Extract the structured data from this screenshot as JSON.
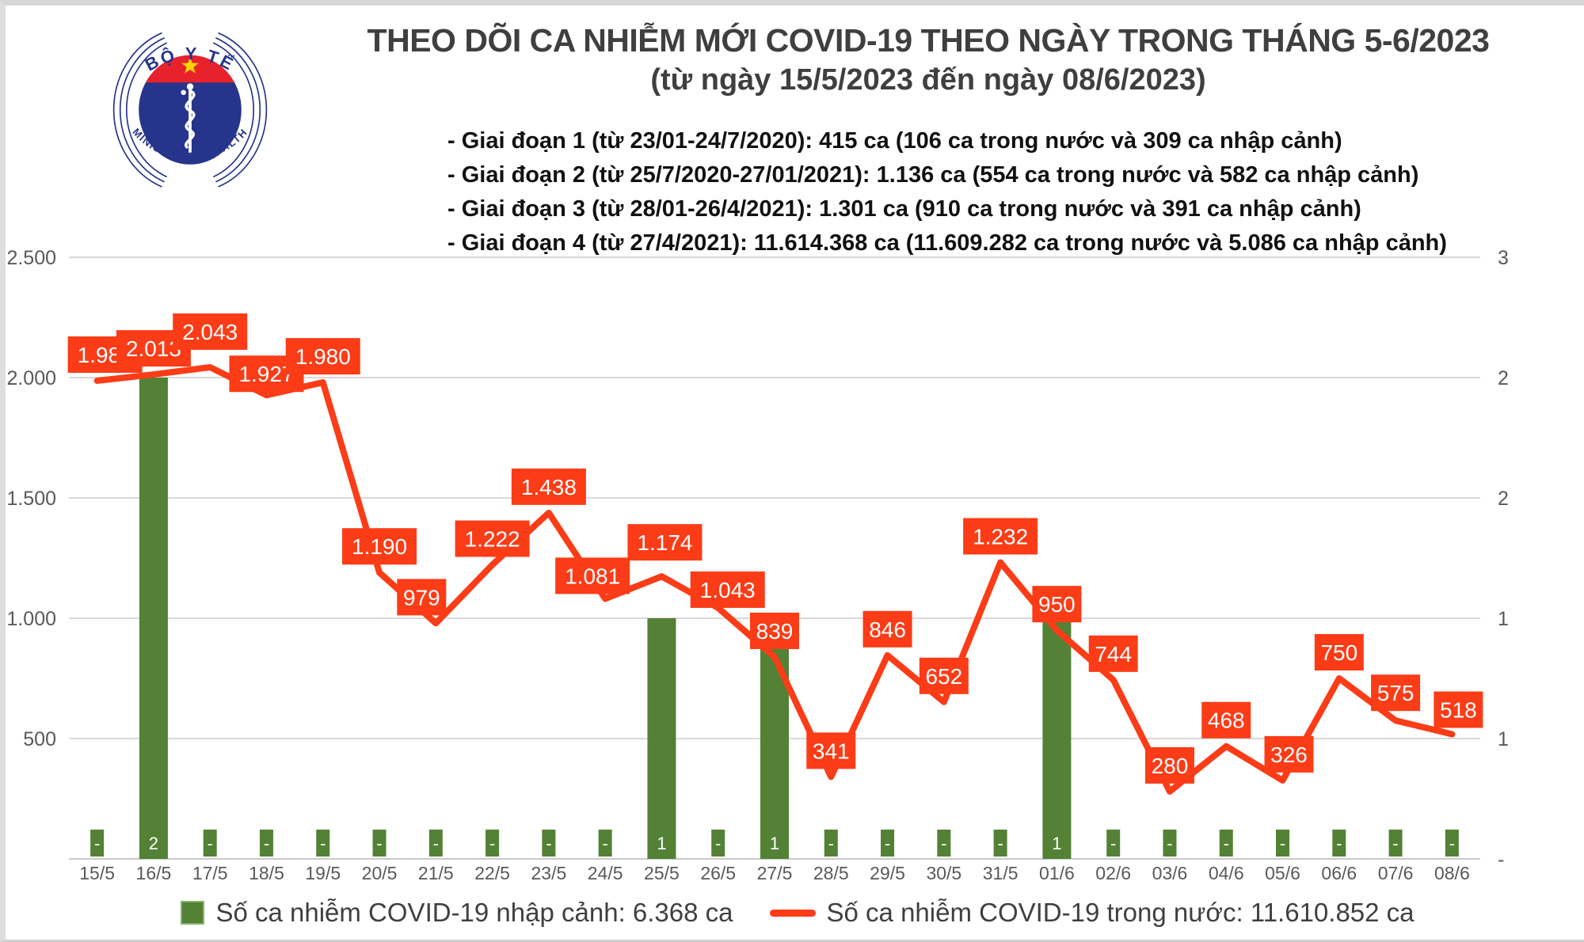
{
  "logo": {
    "top_text": "BỘ Y TẾ",
    "bottom_text": "MINISTRY OF HEALTH"
  },
  "header": {
    "title": "THEO DÕI CA NHIỄM MỚI COVID-19 THEO NGÀY TRONG THÁNG 5-6/2023",
    "subtitle": "(từ ngày 15/5/2023 đến ngày 08/6/2023)",
    "phases": [
      "- Giai đoạn 1 (từ 23/01-24/7/2020): 415 ca (106 ca trong nước và 309 ca nhập cảnh)",
      "- Giai đoạn 2 (từ 25/7/2020-27/01/2021): 1.136 ca (554 ca trong nước và 582 ca nhập cảnh)",
      "- Giai đoạn 3 (từ 28/01-26/4/2021): 1.301 ca (910 ca trong nước và 391 ca nhập cảnh)",
      "- Giai đoạn 4 (từ 27/4/2021): 11.614.368 ca (11.609.282 ca trong nước và 5.086 ca nhập cảnh)"
    ]
  },
  "chart_data": {
    "type": "line+bar combo",
    "categories": [
      "15/5",
      "16/5",
      "17/5",
      "18/5",
      "19/5",
      "20/5",
      "21/5",
      "22/5",
      "23/5",
      "24/5",
      "25/5",
      "26/5",
      "27/5",
      "28/5",
      "29/5",
      "30/5",
      "31/5",
      "01/6",
      "02/6",
      "03/6",
      "04/6",
      "05/6",
      "06/6",
      "07/6",
      "08/6"
    ],
    "series": [
      {
        "name": "Số ca nhiễm COVID-19 trong nước: 11.610.852 ca",
        "type": "line",
        "axis": "left",
        "color": "#fb3c17",
        "values": [
          1987,
          2013,
          2043,
          1927,
          1980,
          1190,
          979,
          1222,
          1438,
          1081,
          1174,
          1043,
          839,
          341,
          846,
          652,
          1232,
          950,
          744,
          280,
          468,
          326,
          750,
          575,
          518
        ],
        "labels": [
          "1.987",
          "2.013",
          "2.043",
          "1.927",
          "1.980",
          "1.190",
          "979",
          "1.222",
          "1.438",
          "1.081",
          "1.174",
          "1.043",
          "839",
          "341",
          "846",
          "652",
          "1.232",
          "950",
          "744",
          "280",
          "468",
          "326",
          "750",
          "575",
          "518"
        ]
      },
      {
        "name": "Số ca nhiễm COVID-19 nhập cảnh: 6.368 ca",
        "type": "bar",
        "axis": "right",
        "color": "#538135",
        "values": [
          0,
          2,
          0,
          0,
          0,
          0,
          0,
          0,
          0,
          0,
          1,
          0,
          1,
          0,
          0,
          0,
          0,
          1,
          0,
          0,
          0,
          0,
          0,
          0,
          0
        ],
        "labels": [
          "-",
          "2",
          "-",
          "-",
          "-",
          "-",
          "-",
          "-",
          "-",
          "-",
          "1",
          "-",
          "1",
          "-",
          "-",
          "-",
          "-",
          "1",
          "-",
          "-",
          "-",
          "-",
          "-",
          "-",
          "-"
        ]
      }
    ],
    "left_axis": {
      "min": 0,
      "max": 2500,
      "step": 500,
      "ticks": [
        "2.500",
        "2.000",
        "1.500",
        "1.000",
        "500"
      ]
    },
    "right_axis": {
      "min": 0,
      "max": 2.5,
      "ticks": [
        "3",
        "2",
        "2",
        "1",
        "1",
        "-"
      ]
    },
    "grid": true,
    "legend_position": "bottom"
  },
  "legend": {
    "bar_label": "Số ca nhiễm COVID-19 nhập cảnh: 6.368 ca",
    "line_label": "Số ca nhiễm COVID-19 trong nước: 11.610.852 ca"
  }
}
